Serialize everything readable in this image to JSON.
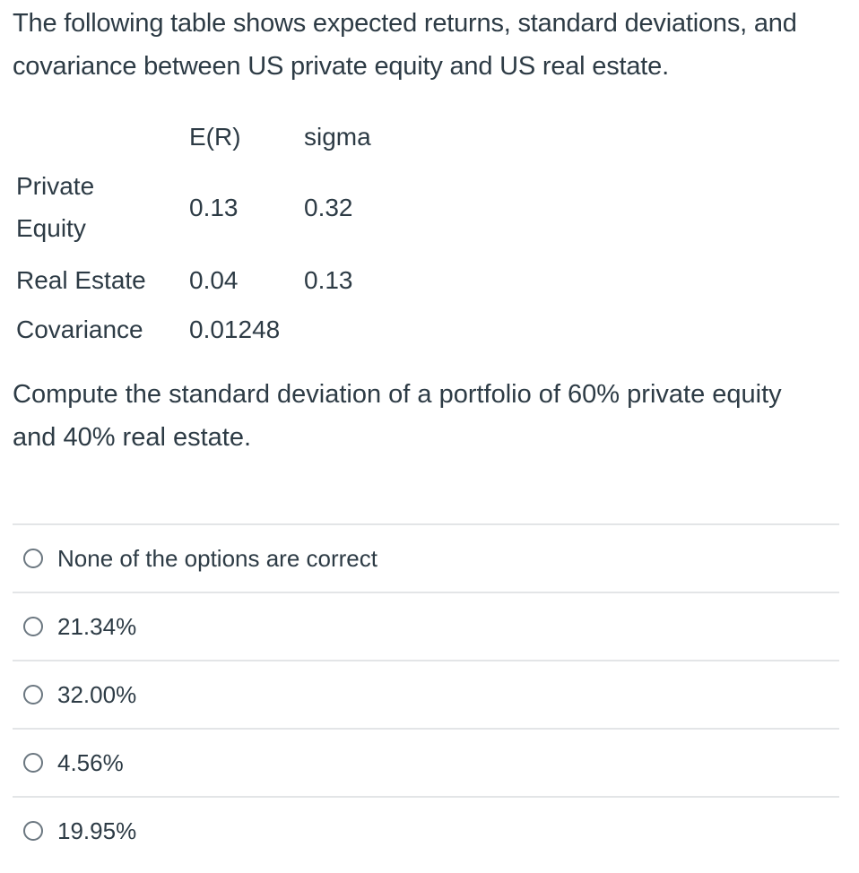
{
  "question": {
    "intro": "The following table shows expected returns, standard deviations, and covariance between US private equity and US real estate.",
    "table": {
      "headers": [
        "",
        "E(R)",
        "sigma"
      ],
      "rows": [
        {
          "label": "Private Equity",
          "er": "0.13",
          "sigma": "0.32"
        },
        {
          "label": "Real Estate",
          "er": "0.04",
          "sigma": "0.13"
        },
        {
          "label": "Covariance",
          "er": "0.01248",
          "sigma": ""
        }
      ]
    },
    "prompt": "Compute the standard deviation of a portfolio of 60% private equity and 40% real estate."
  },
  "answers": [
    {
      "label": "None of the options are correct",
      "selected": false
    },
    {
      "label": "21.34%",
      "selected": false
    },
    {
      "label": "32.00%",
      "selected": false
    },
    {
      "label": "4.56%",
      "selected": false
    },
    {
      "label": "19.95%",
      "selected": false
    }
  ],
  "colors": {
    "text": "#2d3b45",
    "divider": "#e3e5e7",
    "radio_border": "#6b7780"
  }
}
